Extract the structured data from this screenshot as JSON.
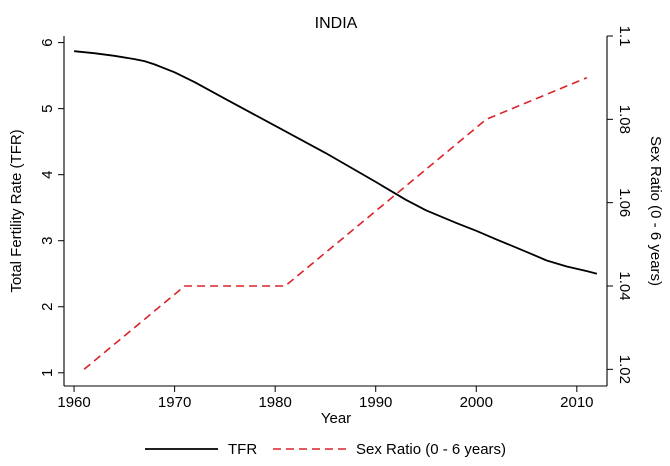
{
  "chart_data": {
    "type": "line",
    "title": "INDIA",
    "xlabel": "Year",
    "ylabel_left": "Total Fertility Rate (TFR)",
    "ylabel_right": "Sex Ratio (0 - 6 years)",
    "xlim": [
      1959,
      2013
    ],
    "ylim_left": [
      0.8,
      6.1
    ],
    "ylim_right": [
      1.016,
      1.1
    ],
    "x_ticks": [
      1960,
      1970,
      1980,
      1990,
      2000,
      2010
    ],
    "y_left_ticks": [
      1,
      2,
      3,
      4,
      5,
      6
    ],
    "y_right_ticks": [
      "1.02",
      "1.04",
      "1.06",
      "1.08",
      "1.1"
    ],
    "grid": false,
    "legend_position": "bottom",
    "series": [
      {
        "name": "TFR",
        "axis": "left",
        "color": "#000000",
        "style": "solid",
        "x": [
          1960,
          1962,
          1964,
          1966,
          1967,
          1968,
          1970,
          1972,
          1975,
          1980,
          1985,
          1990,
          1993,
          1995,
          1998,
          2000,
          2002,
          2005,
          2007,
          2009,
          2011,
          2012
        ],
        "values": [
          5.87,
          5.84,
          5.8,
          5.75,
          5.72,
          5.67,
          5.55,
          5.4,
          5.15,
          4.74,
          4.33,
          3.89,
          3.62,
          3.46,
          3.27,
          3.15,
          3.02,
          2.83,
          2.7,
          2.61,
          2.54,
          2.5
        ]
      },
      {
        "name": "Sex Ratio (0 - 6 years)",
        "axis": "right",
        "color": "#d9232a",
        "style": "dashed",
        "x": [
          1961,
          1971,
          1981,
          1991,
          2001,
          2011
        ],
        "values": [
          1.02,
          1.04,
          1.04,
          1.06,
          1.08,
          1.09
        ]
      }
    ]
  }
}
